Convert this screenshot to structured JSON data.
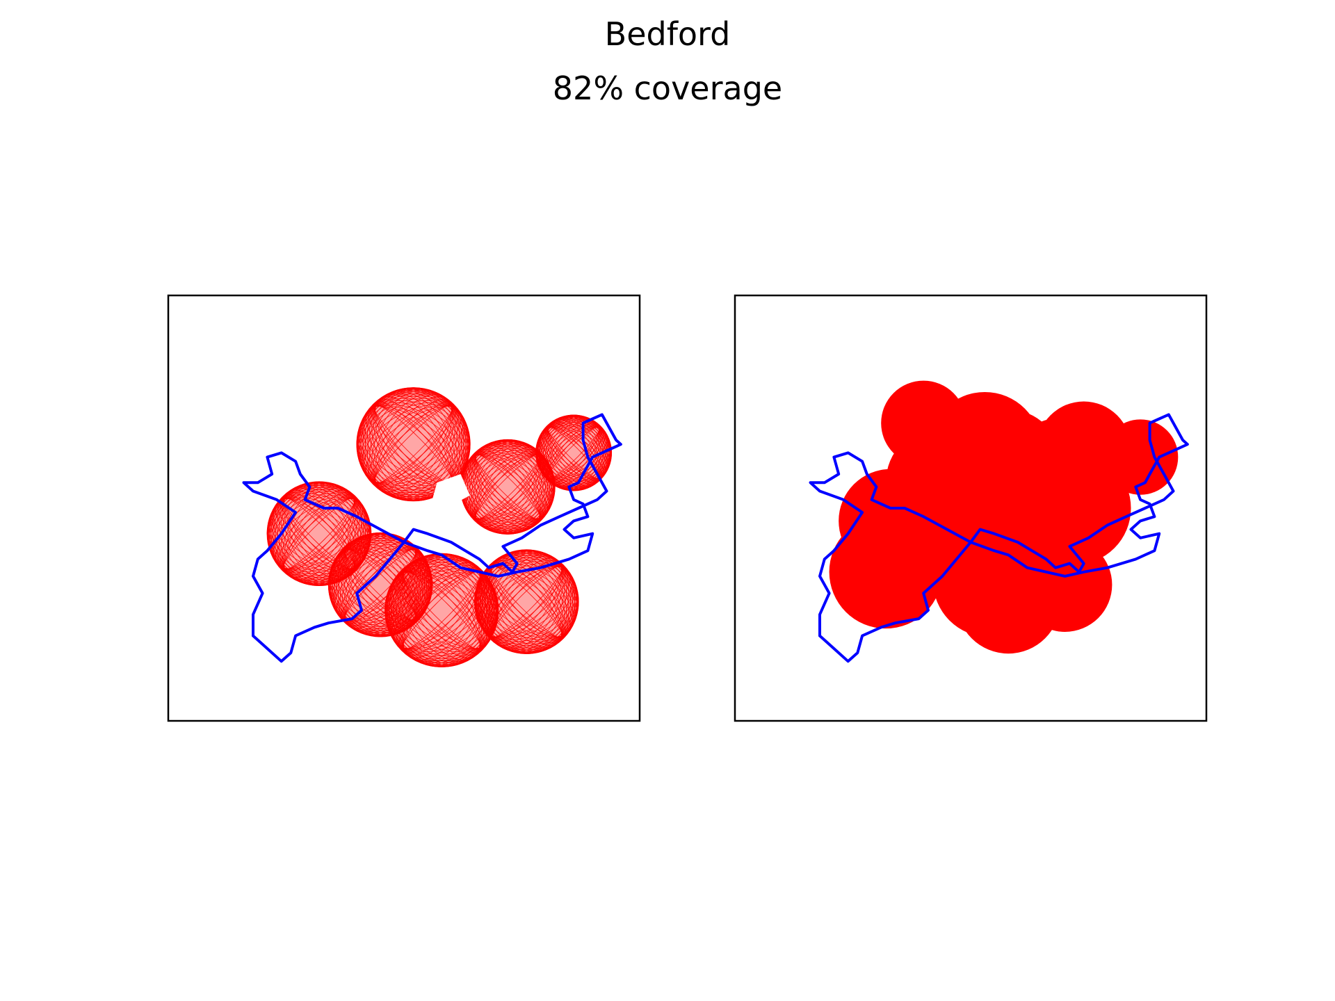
{
  "figure": {
    "title": "Bedford",
    "subtitle": "82% coverage"
  },
  "colors": {
    "boundary": "#0000ff",
    "coverage": "#ff0000",
    "frame": "#000000",
    "background": "#ffffff"
  },
  "chart_data": [
    {
      "type": "scatter",
      "panel": "left",
      "style": "outline-circles",
      "title": "",
      "xlabel": "",
      "ylabel": "",
      "ticks": false,
      "grid": false,
      "xlim": [
        0,
        100
      ],
      "ylim": [
        0,
        100
      ],
      "boundary": [
        [
          18,
          20
        ],
        [
          21,
          17
        ],
        [
          24,
          14
        ],
        [
          26,
          16
        ],
        [
          27,
          20
        ],
        [
          31,
          22
        ],
        [
          34,
          23
        ],
        [
          39,
          24
        ],
        [
          41,
          26
        ],
        [
          40,
          30
        ],
        [
          44,
          34
        ],
        [
          47,
          38
        ],
        [
          50,
          42
        ],
        [
          52,
          45
        ],
        [
          55,
          44
        ],
        [
          60,
          42
        ],
        [
          63,
          40
        ],
        [
          66,
          38
        ],
        [
          68,
          36
        ],
        [
          71,
          37
        ],
        [
          73,
          35
        ],
        [
          74,
          37
        ],
        [
          71,
          41
        ],
        [
          75,
          43
        ],
        [
          79,
          46
        ],
        [
          83,
          48
        ],
        [
          87,
          50
        ],
        [
          91,
          52
        ],
        [
          93,
          54
        ],
        [
          91,
          58
        ],
        [
          89,
          62
        ],
        [
          88,
          66
        ],
        [
          88,
          70
        ],
        [
          90,
          71
        ],
        [
          92,
          72
        ],
        [
          95,
          66
        ],
        [
          96,
          65
        ],
        [
          92,
          63
        ],
        [
          90,
          62
        ],
        [
          88,
          58
        ],
        [
          87,
          56
        ],
        [
          85,
          55
        ],
        [
          86,
          52
        ],
        [
          88,
          51
        ],
        [
          89,
          48
        ],
        [
          86,
          47
        ],
        [
          84,
          45
        ],
        [
          86,
          43
        ],
        [
          90,
          44
        ],
        [
          89,
          40
        ],
        [
          85,
          38
        ],
        [
          79,
          36
        ],
        [
          74,
          35
        ],
        [
          70,
          34
        ],
        [
          62,
          36
        ],
        [
          58,
          39
        ],
        [
          55,
          40
        ],
        [
          50,
          42
        ],
        [
          45,
          45
        ],
        [
          40,
          48
        ],
        [
          36,
          50
        ],
        [
          33,
          50
        ],
        [
          29,
          52
        ],
        [
          30,
          55
        ],
        [
          28,
          58
        ],
        [
          27,
          61
        ],
        [
          24,
          63
        ],
        [
          21,
          62
        ],
        [
          22,
          58
        ],
        [
          19,
          56
        ],
        [
          16,
          56
        ],
        [
          18,
          54
        ],
        [
          23,
          52
        ],
        [
          27,
          49
        ],
        [
          24,
          44
        ],
        [
          21,
          40
        ],
        [
          19,
          38
        ],
        [
          18,
          34
        ],
        [
          20,
          30
        ],
        [
          18,
          25
        ],
        [
          18,
          20
        ]
      ],
      "circles": [
        [
          32,
          44,
          11
        ],
        [
          45,
          32,
          11
        ],
        [
          58,
          26,
          12
        ],
        [
          76,
          28,
          11
        ],
        [
          52,
          65,
          12
        ],
        [
          72,
          55,
          10
        ],
        [
          86,
          63,
          8
        ]
      ],
      "hole": [
        [
          57,
          56
        ],
        [
          62,
          58
        ],
        [
          64,
          53
        ],
        [
          59,
          50
        ],
        [
          56,
          52
        ]
      ]
    },
    {
      "type": "scatter",
      "panel": "right",
      "style": "filled-circles",
      "title": "",
      "xlabel": "",
      "ylabel": "",
      "ticks": false,
      "grid": false,
      "xlim": [
        0,
        100
      ],
      "ylim": [
        0,
        100
      ],
      "boundary": [
        [
          18,
          20
        ],
        [
          21,
          17
        ],
        [
          24,
          14
        ],
        [
          26,
          16
        ],
        [
          27,
          20
        ],
        [
          31,
          22
        ],
        [
          34,
          23
        ],
        [
          39,
          24
        ],
        [
          41,
          26
        ],
        [
          40,
          30
        ],
        [
          44,
          34
        ],
        [
          47,
          38
        ],
        [
          50,
          42
        ],
        [
          52,
          45
        ],
        [
          55,
          44
        ],
        [
          60,
          42
        ],
        [
          63,
          40
        ],
        [
          66,
          38
        ],
        [
          68,
          36
        ],
        [
          71,
          37
        ],
        [
          73,
          35
        ],
        [
          74,
          37
        ],
        [
          71,
          41
        ],
        [
          75,
          43
        ],
        [
          79,
          46
        ],
        [
          83,
          48
        ],
        [
          87,
          50
        ],
        [
          91,
          52
        ],
        [
          93,
          54
        ],
        [
          91,
          58
        ],
        [
          89,
          62
        ],
        [
          88,
          66
        ],
        [
          88,
          70
        ],
        [
          90,
          71
        ],
        [
          92,
          72
        ],
        [
          95,
          66
        ],
        [
          96,
          65
        ],
        [
          92,
          63
        ],
        [
          90,
          62
        ],
        [
          88,
          58
        ],
        [
          87,
          56
        ],
        [
          85,
          55
        ],
        [
          86,
          52
        ],
        [
          88,
          51
        ],
        [
          89,
          48
        ],
        [
          86,
          47
        ],
        [
          84,
          45
        ],
        [
          86,
          43
        ],
        [
          90,
          44
        ],
        [
          89,
          40
        ],
        [
          85,
          38
        ],
        [
          79,
          36
        ],
        [
          74,
          35
        ],
        [
          70,
          34
        ],
        [
          62,
          36
        ],
        [
          58,
          39
        ],
        [
          55,
          40
        ],
        [
          50,
          42
        ],
        [
          45,
          45
        ],
        [
          40,
          48
        ],
        [
          36,
          50
        ],
        [
          33,
          50
        ],
        [
          29,
          52
        ],
        [
          30,
          55
        ],
        [
          28,
          58
        ],
        [
          27,
          61
        ],
        [
          24,
          63
        ],
        [
          21,
          62
        ],
        [
          22,
          58
        ],
        [
          19,
          56
        ],
        [
          16,
          56
        ],
        [
          18,
          54
        ],
        [
          23,
          52
        ],
        [
          27,
          49
        ],
        [
          24,
          44
        ],
        [
          21,
          40
        ],
        [
          19,
          38
        ],
        [
          18,
          34
        ],
        [
          20,
          30
        ],
        [
          18,
          25
        ],
        [
          18,
          20
        ]
      ],
      "circles": [
        [
          32,
          35,
          12
        ],
        [
          33,
          47,
          11
        ],
        [
          44,
          56,
          12
        ],
        [
          54,
          33,
          12
        ],
        [
          53,
          64,
          12
        ],
        [
          63,
          52,
          13
        ],
        [
          72,
          50,
          12
        ],
        [
          74,
          64,
          10
        ],
        [
          86,
          62,
          8
        ],
        [
          70,
          32,
          10
        ],
        [
          42,
          42,
          11
        ],
        [
          60,
          42,
          10
        ],
        [
          58,
          28,
          11
        ],
        [
          40,
          70,
          9
        ],
        [
          47,
          61,
          11
        ],
        [
          58,
          61,
          11
        ],
        [
          69,
          59,
          11
        ]
      ]
    }
  ]
}
